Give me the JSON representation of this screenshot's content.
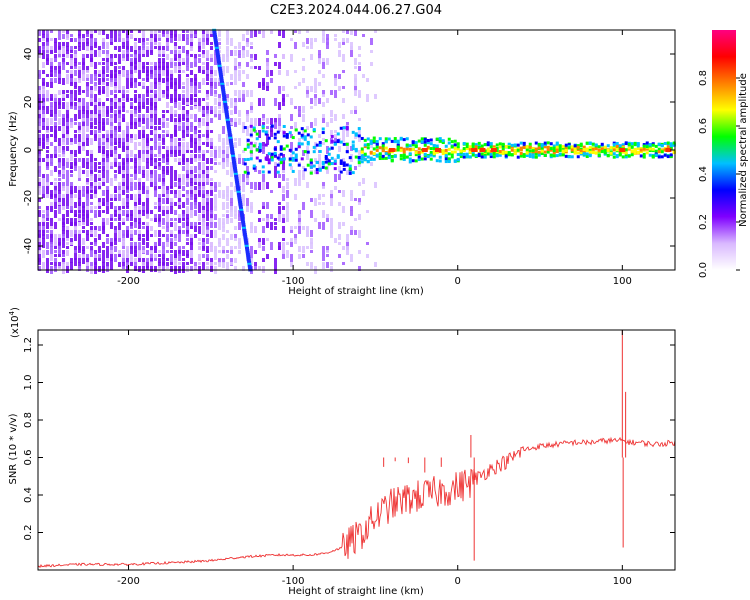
{
  "figure": {
    "title": "C2E3.2024.044.06.27.G04"
  },
  "chart_data": [
    {
      "type": "heatmap",
      "xlabel": "Height of straight line (km)",
      "ylabel": "Frequency (Hz)",
      "xlim": [
        -255,
        132
      ],
      "ylim": [
        -50,
        50
      ],
      "x_ticks": [
        -200,
        -100,
        0,
        100
      ],
      "y_ticks": [
        -40,
        -20,
        0,
        20,
        40
      ],
      "colorbar": {
        "label": "Normalized spectral amplitude",
        "range": [
          0,
          1
        ],
        "ticks": [
          "0.0",
          "0.2",
          "0.4",
          "0.6",
          "0.8"
        ],
        "tick_values": [
          0,
          0.2,
          0.4,
          0.6,
          0.8
        ],
        "colormap": [
          "#ffffff",
          "#d9b8ff",
          "#7f00ff",
          "#0000ff",
          "#00c0ff",
          "#00ff00",
          "#ffff00",
          "#ff8000",
          "#ff0000",
          "#ff0080"
        ]
      },
      "features": {
        "noise_region_x": [
          -255,
          -60
        ],
        "diagonal_line": {
          "from": [
            -148,
            50
          ],
          "to": [
            -126,
            -50
          ]
        },
        "signal_band_center_hz": 0,
        "signal_band_width_hz": 4,
        "strong_points_x": [
          -40,
          -20,
          -12,
          10,
          15,
          22,
          100,
          128
        ]
      }
    },
    {
      "type": "line",
      "xlabel": "Height of straight line (km)",
      "ylabel": "SNR (10 * v/v)",
      "y_multiplier": "(x10^4)",
      "y_multiplier_base": "(x10",
      "y_multiplier_exp": "4",
      "y_multiplier_close": ")",
      "xlim": [
        -255,
        132
      ],
      "ylim": [
        0,
        1.28
      ],
      "x_ticks": [
        -200,
        -100,
        0,
        100
      ],
      "y_ticks": [
        0.2,
        0.4,
        0.6,
        0.8,
        1.0,
        1.2
      ],
      "y_tick_labels": [
        "0.2",
        "0.4",
        "0.6",
        "0.8",
        "1.0",
        "1.2"
      ],
      "color": "#ff0000",
      "series": [
        {
          "x": [
            -255,
            -230,
            -200,
            -170,
            -150,
            -130,
            -110,
            -90,
            -80,
            -70,
            -60,
            -50,
            -40,
            -30,
            -20,
            -10,
            0,
            10,
            20,
            30,
            40,
            50,
            60,
            70,
            80,
            90,
            95,
            100,
            105,
            110,
            120,
            132
          ],
          "values": [
            0.02,
            0.03,
            0.03,
            0.04,
            0.05,
            0.07,
            0.08,
            0.08,
            0.09,
            0.12,
            0.18,
            0.28,
            0.35,
            0.38,
            0.4,
            0.42,
            0.44,
            0.48,
            0.54,
            0.58,
            0.64,
            0.66,
            0.67,
            0.68,
            0.68,
            0.69,
            0.69,
            0.69,
            0.68,
            0.68,
            0.67,
            0.68
          ]
        }
      ],
      "spikes": [
        {
          "x": -45,
          "value": 0.55
        },
        {
          "x": -38,
          "value": 0.58
        },
        {
          "x": -30,
          "value": 0.57
        },
        {
          "x": -20,
          "value": 0.52
        },
        {
          "x": -10,
          "value": 0.55
        },
        {
          "x": 8,
          "value": 0.72
        },
        {
          "x": 10,
          "value": 0.05
        },
        {
          "x": 100,
          "value": 1.28
        },
        {
          "x": 100.5,
          "value": 0.12
        },
        {
          "x": 102,
          "value": 0.95
        }
      ]
    }
  ]
}
